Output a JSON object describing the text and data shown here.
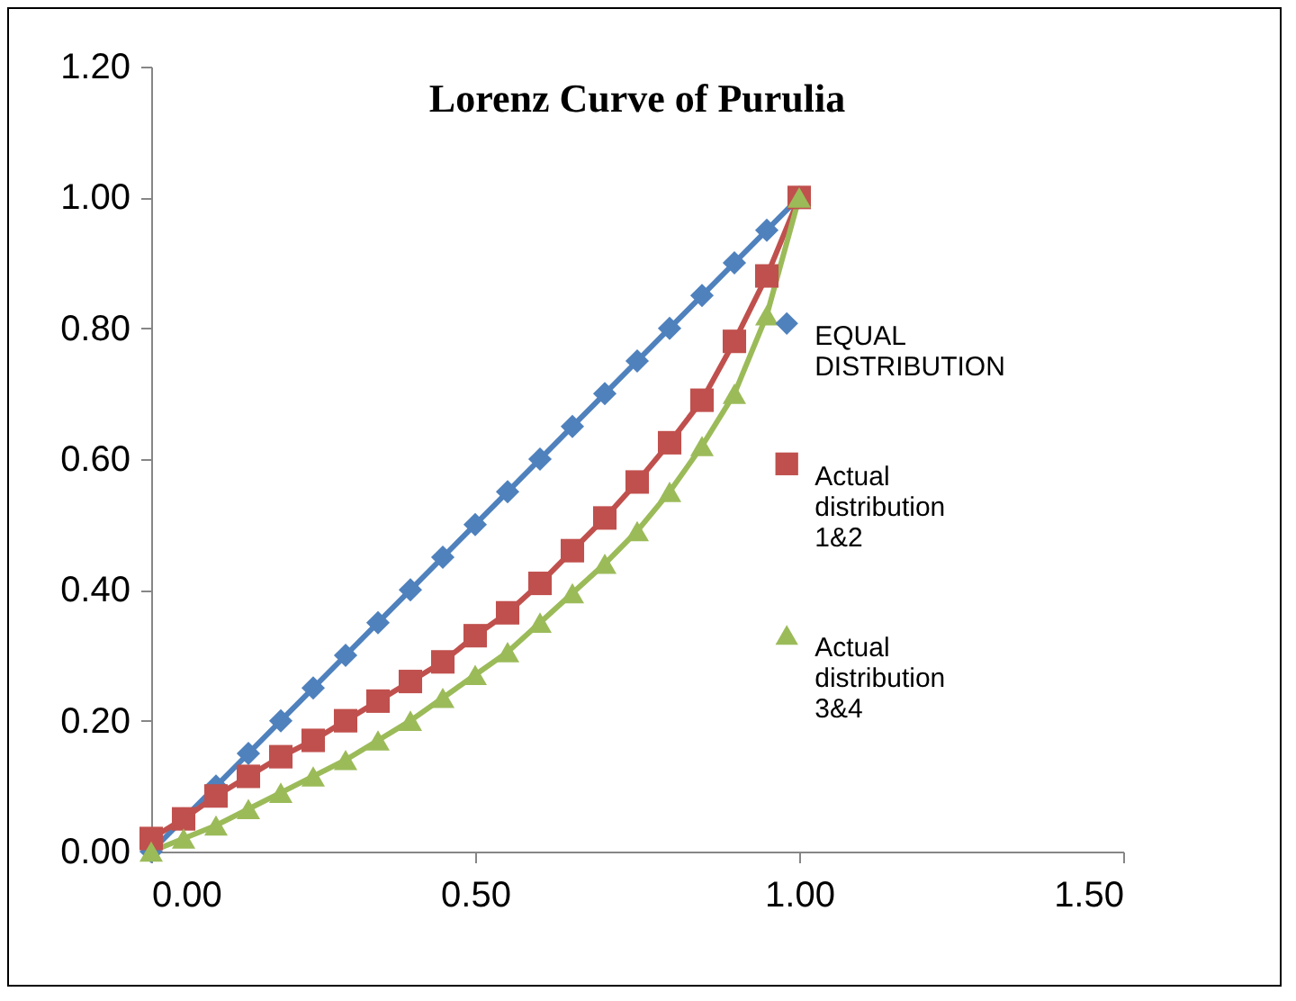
{
  "chart_data": {
    "type": "line",
    "title": "Lorenz Curve of Purulia",
    "x": [
      0,
      0.05,
      0.1,
      0.15,
      0.2,
      0.25,
      0.3,
      0.35,
      0.4,
      0.45,
      0.5,
      0.55,
      0.6,
      0.65,
      0.7,
      0.75,
      0.8,
      0.85,
      0.9,
      0.95,
      1
    ],
    "series": [
      {
        "name": "EQUAL DISTRIBUTION",
        "color": "#4f81bd",
        "marker": "diamond",
        "values": [
          0,
          0.05,
          0.1,
          0.15,
          0.2,
          0.25,
          0.3,
          0.35,
          0.4,
          0.45,
          0.5,
          0.55,
          0.6,
          0.65,
          0.7,
          0.75,
          0.8,
          0.85,
          0.9,
          0.95,
          1
        ]
      },
      {
        "name": "Actual distribution 1&2",
        "color": "#c0504d",
        "marker": "square",
        "values": [
          0.02,
          0.05,
          0.085,
          0.115,
          0.145,
          0.17,
          0.2,
          0.23,
          0.26,
          0.29,
          0.33,
          0.365,
          0.41,
          0.46,
          0.51,
          0.565,
          0.625,
          0.69,
          0.78,
          0.88,
          1
        ]
      },
      {
        "name": "Actual distribution 3&4",
        "color": "#9bbb59",
        "marker": "triangle",
        "values": [
          0,
          0.02,
          0.04,
          0.065,
          0.09,
          0.115,
          0.14,
          0.17,
          0.2,
          0.235,
          0.27,
          0.305,
          0.35,
          0.395,
          0.44,
          0.49,
          0.55,
          0.62,
          0.7,
          0.82,
          1
        ]
      }
    ],
    "xlim": [
      0,
      1.5
    ],
    "xticks": [
      {
        "value": 0,
        "label": "0.00"
      },
      {
        "value": 0.5,
        "label": "0.50"
      },
      {
        "value": 1,
        "label": "1.00"
      },
      {
        "value": 1.5,
        "label": "1.50"
      }
    ],
    "ylim": [
      0,
      1.2
    ],
    "yticks": [
      {
        "value": 0,
        "label": "0.00"
      },
      {
        "value": 0.2,
        "label": "0.20"
      },
      {
        "value": 0.4,
        "label": "0.40"
      },
      {
        "value": 0.6,
        "label": "0.60"
      },
      {
        "value": 0.8,
        "label": "0.80"
      },
      {
        "value": 1,
        "label": "1.00"
      },
      {
        "value": 1.2,
        "label": "1.20"
      }
    ],
    "grid": false,
    "legend": "right",
    "line_style": "solid"
  }
}
